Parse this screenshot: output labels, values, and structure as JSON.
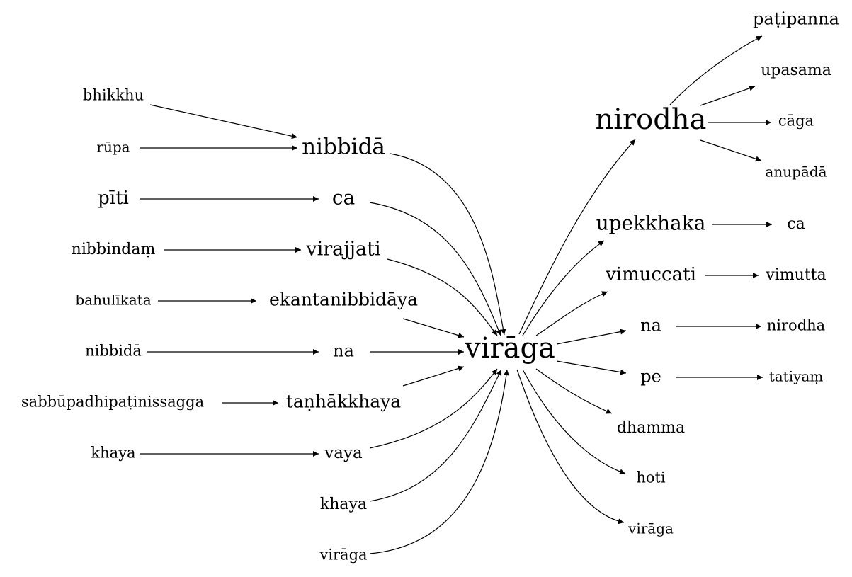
{
  "graph": {
    "center": "virāga",
    "nodes": {
      "virāga": "virāga",
      "nibbidā_m": "nibbidā",
      "ca_l": "ca",
      "virajjati": "virajjati",
      "ekantanibbidāya": "ekantanibbidāya",
      "na_l": "na",
      "taṇhākkhaya": "taṇhākkhaya",
      "vaya": "vaya",
      "khaya_m": "khaya",
      "virāga_m": "virāga",
      "bhikkhu": "bhikkhu",
      "rūpa": "rūpa",
      "pīti": "pīti",
      "nibbindaṃ": "nibbindaṃ",
      "bahulīkata": "bahulīkata",
      "nibbidā_l": "nibbidā",
      "sabbūpadhipaṭinissagga": "sabbūpadhipaṭinissagga",
      "khaya_l": "khaya",
      "nirodha": "nirodha",
      "upekkhaka": "upekkhaka",
      "vimuccati": "vimuccati",
      "na_r": "na",
      "pe": "pe",
      "dhamma": "dhamma",
      "hoti": "hoti",
      "virāga_r": "virāga",
      "paṭipanna": "paṭipanna",
      "upasama": "upasama",
      "cāga": "cāga",
      "anupādā": "anupādā",
      "ca_r": "ca",
      "vimutta": "vimutta",
      "nirodha_r": "nirodha",
      "tatiyaṃ": "tatiyaṃ"
    },
    "edges": [
      [
        "bhikkhu",
        "nibbidā_m"
      ],
      [
        "rūpa",
        "nibbidā_m"
      ],
      [
        "pīti",
        "ca_l"
      ],
      [
        "nibbindaṃ",
        "virajjati"
      ],
      [
        "bahulīkata",
        "ekantanibbidāya"
      ],
      [
        "nibbidā_l",
        "na_l"
      ],
      [
        "sabbūpadhipaṭinissagga",
        "taṇhākkhaya"
      ],
      [
        "khaya_l",
        "vaya"
      ],
      [
        "nibbidā_m",
        "virāga"
      ],
      [
        "ca_l",
        "virāga"
      ],
      [
        "virajjati",
        "virāga"
      ],
      [
        "ekantanibbidāya",
        "virāga"
      ],
      [
        "na_l",
        "virāga"
      ],
      [
        "taṇhākkhaya",
        "virāga"
      ],
      [
        "vaya",
        "virāga"
      ],
      [
        "khaya_m",
        "virāga"
      ],
      [
        "virāga_m",
        "virāga"
      ],
      [
        "virāga",
        "nirodha"
      ],
      [
        "virāga",
        "upekkhaka"
      ],
      [
        "virāga",
        "vimuccati"
      ],
      [
        "virāga",
        "na_r"
      ],
      [
        "virāga",
        "pe"
      ],
      [
        "virāga",
        "dhamma"
      ],
      [
        "virāga",
        "hoti"
      ],
      [
        "virāga",
        "virāga_r"
      ],
      [
        "nirodha",
        "paṭipanna"
      ],
      [
        "nirodha",
        "upasama"
      ],
      [
        "nirodha",
        "cāga"
      ],
      [
        "nirodha",
        "anupādā"
      ],
      [
        "upekkhaka",
        "ca_r"
      ],
      [
        "vimuccati",
        "vimutta"
      ],
      [
        "na_r",
        "nirodha_r"
      ],
      [
        "pe",
        "tatiyaṃ"
      ]
    ]
  }
}
